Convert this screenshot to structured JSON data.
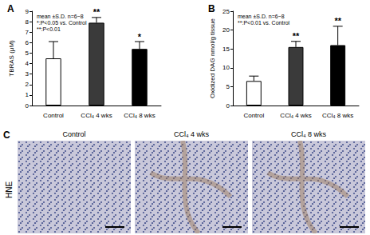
{
  "chart_data": [
    {
      "type": "bar",
      "title": "A",
      "annotations": [
        "mean ±S.D. n=6~8",
        "*:P<0.05 vs. Control",
        "**:P<0.01"
      ],
      "categories": [
        "Control",
        "CCl₄ 4 wks",
        "CCl₄ 8 wks"
      ],
      "values": [
        4.5,
        7.9,
        5.4
      ],
      "errors": [
        1.6,
        0.5,
        0.7
      ],
      "significance": [
        null,
        "**",
        "*"
      ],
      "colors": [
        "#ffffff",
        "#3a3a3a",
        "#000000"
      ],
      "y_label": "TBRAS (μM)",
      "ylim": [
        0,
        9
      ],
      "yticks": [
        0,
        1,
        2,
        3,
        4,
        5,
        6,
        7,
        8,
        9
      ],
      "grid": false
    },
    {
      "type": "bar",
      "title": "B",
      "annotations": [
        "mean ±S.D. n=6~8",
        "**:P<0.01 vs. Control"
      ],
      "categories": [
        "Control",
        "CCl₄ 4 wks",
        "CCl₄ 8 wks"
      ],
      "values": [
        6.5,
        15.5,
        16.0
      ],
      "errors": [
        1.3,
        1.5,
        5.0
      ],
      "significance": [
        null,
        "**",
        "**"
      ],
      "colors": [
        "#ffffff",
        "#3a3a3a",
        "#000000"
      ],
      "y_label": "Oxidized DAG nmol/g tissue",
      "ylim": [
        0,
        25
      ],
      "yticks": [
        0,
        5,
        10,
        15,
        20,
        25
      ],
      "grid": false
    }
  ],
  "panel_c": {
    "title": "C",
    "row_label": "HNE",
    "images": [
      "Control",
      "CCl₄ 4 wks",
      "CCl₄ 8 wks"
    ]
  }
}
